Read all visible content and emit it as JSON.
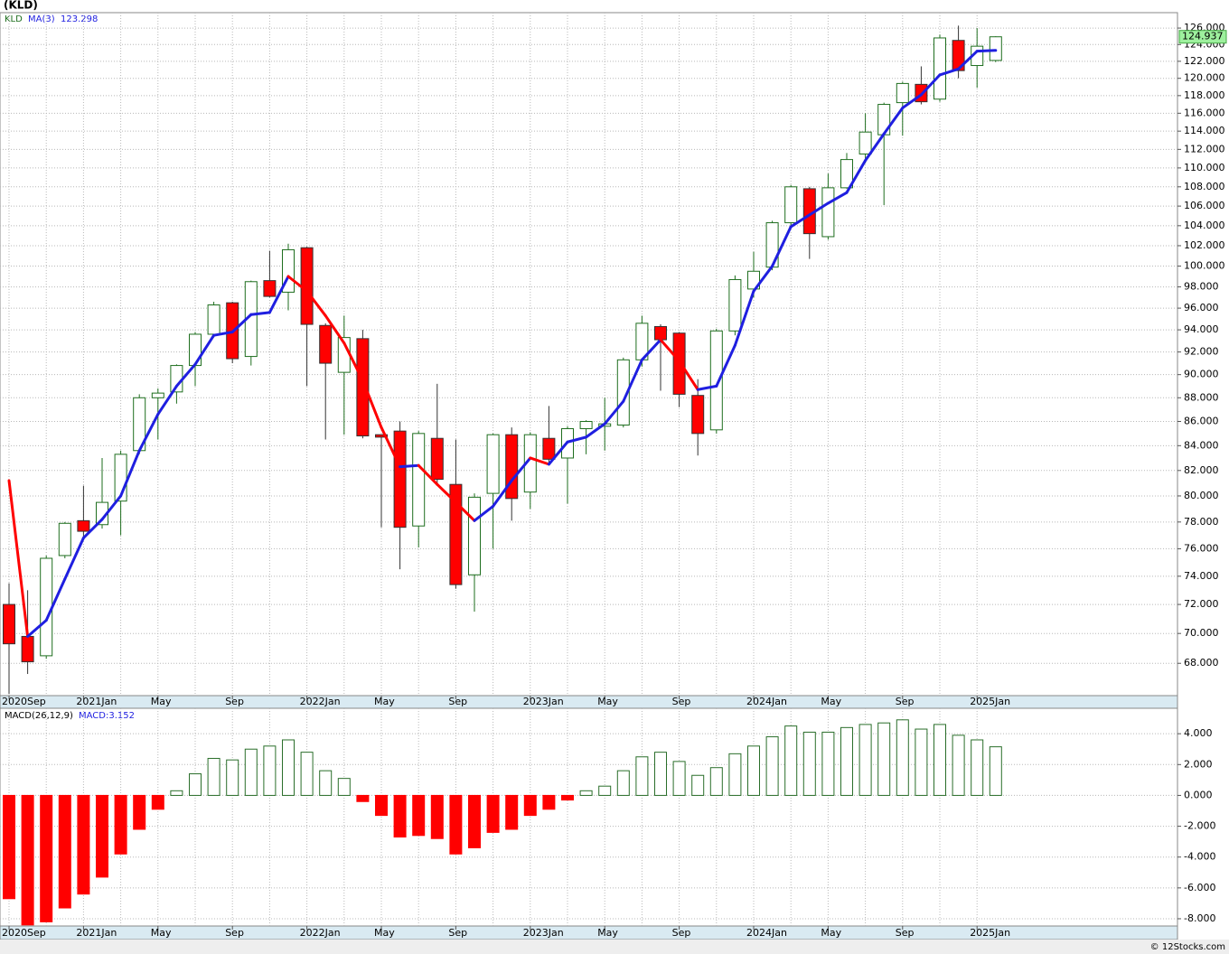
{
  "title": "(KLD)",
  "footer": "© 12Stocks.com",
  "chart_data": [
    {
      "type": "candlestick",
      "symbol": "KLD",
      "log_scale": true,
      "grid": true,
      "categories": [
        "2020Sep",
        null,
        null,
        null,
        "2021Jan",
        null,
        null,
        null,
        "May",
        null,
        null,
        null,
        "Sep",
        null,
        null,
        null,
        "2022Jan",
        null,
        null,
        null,
        "May",
        null,
        null,
        null,
        "Sep",
        null,
        null,
        null,
        "2023Jan",
        null,
        null,
        null,
        "May",
        null,
        null,
        null,
        "Sep",
        null,
        null,
        null,
        "2024Jan",
        null,
        null,
        null,
        "May",
        null,
        null,
        null,
        "Sep",
        null,
        null,
        null,
        "2025Jan",
        null
      ],
      "up_color": "#1e6e1e",
      "down_color": "#ff0000",
      "open": [
        72,
        69.8,
        68.5,
        75.5,
        78.1,
        77.8,
        79.6,
        83.6,
        88,
        88.5,
        90.8,
        93.6,
        96.5,
        91.6,
        98.6,
        97.5,
        101.8,
        94.4,
        90.2,
        93.2,
        84.9,
        85.2,
        77.7,
        84.6,
        80.9,
        74.1,
        80.2,
        84.9,
        80.3,
        84.6,
        83,
        85.4,
        85.6,
        85.7,
        91.3,
        94.3,
        93.7,
        88.2,
        85.3,
        93.9,
        97.8,
        99.9,
        104.3,
        107.8,
        102.9,
        107.9,
        111.5,
        113.6,
        117.2,
        119.3,
        117.6,
        124.5,
        121.5,
        122.1
      ],
      "high": [
        73.5,
        73,
        75.5,
        78,
        80.8,
        83,
        83.6,
        88.3,
        88.8,
        90.9,
        93.8,
        96.6,
        96.6,
        98.6,
        101.5,
        102.2,
        101.9,
        94.6,
        95.3,
        94,
        84.9,
        86,
        85.2,
        89.2,
        84.5,
        80.2,
        85,
        85.5,
        85.1,
        87.3,
        85.6,
        86.1,
        88,
        91.5,
        95.3,
        94.5,
        93.8,
        89.6,
        94.1,
        99.1,
        101.4,
        104.5,
        108.2,
        108,
        109.4,
        111.6,
        116,
        117.2,
        119.6,
        121.4,
        125.2,
        126.3,
        126,
        125
      ],
      "low": [
        66,
        67.3,
        68.3,
        75.3,
        76.8,
        77.5,
        77,
        83.3,
        84.5,
        87.5,
        89,
        93.3,
        91,
        90.8,
        97,
        95.8,
        89,
        84.5,
        84.9,
        84.6,
        77.6,
        74.5,
        76.1,
        80.8,
        73.1,
        71.5,
        76,
        78.1,
        79,
        82.4,
        79.4,
        83.3,
        83.6,
        85.5,
        90.7,
        88.6,
        87.2,
        83.2,
        85,
        93.5,
        97,
        99.6,
        103.9,
        100.7,
        102.6,
        107.8,
        110.5,
        106.1,
        113.5,
        117,
        117.3,
        120,
        118.9,
        121.9
      ],
      "close": [
        69.3,
        68.1,
        75.3,
        77.9,
        77.3,
        79.5,
        83.3,
        88,
        88.4,
        90.8,
        93.6,
        96.3,
        91.4,
        98.5,
        97.1,
        101.6,
        94.5,
        91,
        93.3,
        84.8,
        84.7,
        77.6,
        85,
        81.3,
        73.4,
        79.9,
        84.9,
        79.8,
        84.9,
        82.9,
        85.4,
        86,
        85.8,
        91.3,
        94.6,
        93.1,
        88.3,
        85,
        93.9,
        98.7,
        99.5,
        104.3,
        108,
        103.2,
        107.9,
        110.9,
        113.9,
        117,
        119.4,
        117.3,
        124.8,
        120.9,
        123.8,
        124.937
      ],
      "series": [
        {
          "name": "MA(3)",
          "color": "#1f1fe0",
          "down_color": "#ff0000",
          "values": [
            81.2,
            69.8,
            70.9,
            73.8,
            76.8,
            78.2,
            80,
            83.6,
            86.6,
            89,
            90.9,
            93.5,
            93.8,
            95.4,
            95.6,
            99,
            97.6,
            95.3,
            92.8,
            89.5,
            85.5,
            82.3,
            82.4,
            80.9,
            79.5,
            78.1,
            79.2,
            81.2,
            83,
            82.5,
            84.3,
            84.7,
            85.8,
            87.7,
            91.3,
            93.1,
            91.2,
            88.7,
            89,
            92.6,
            97.6,
            100,
            103.9,
            105.1,
            106.3,
            107.4,
            110.8,
            113.7,
            116.6,
            118.1,
            120.4,
            121.1,
            123.2,
            123.298
          ]
        }
      ],
      "ylim": [
        65.9,
        127.9
      ],
      "yticks": [
        {
          "value": 68,
          "label": "68.000"
        },
        {
          "value": 70,
          "label": "70.000"
        },
        {
          "value": 72,
          "label": "72.000"
        },
        {
          "value": 74,
          "label": "74.000"
        },
        {
          "value": 76,
          "label": "76.000"
        },
        {
          "value": 78,
          "label": "78.000"
        },
        {
          "value": 80,
          "label": "80.000"
        },
        {
          "value": 82,
          "label": "82.000"
        },
        {
          "value": 84,
          "label": "84.000"
        },
        {
          "value": 86,
          "label": "86.000"
        },
        {
          "value": 88,
          "label": "88.000"
        },
        {
          "value": 90,
          "label": "90.000"
        },
        {
          "value": 92,
          "label": "92.000"
        },
        {
          "value": 94,
          "label": "94.000"
        },
        {
          "value": 96,
          "label": "96.000"
        },
        {
          "value": 98,
          "label": "98.000"
        },
        {
          "value": 100,
          "label": "100.000"
        },
        {
          "value": 102,
          "label": "102.000"
        },
        {
          "value": 104,
          "label": "104.000"
        },
        {
          "value": 106,
          "label": "106.000"
        },
        {
          "value": 108,
          "label": "108.000"
        },
        {
          "value": 110,
          "label": "110.000"
        },
        {
          "value": 112,
          "label": "112.000"
        },
        {
          "value": 114,
          "label": "114.000"
        },
        {
          "value": 116,
          "label": "116.000"
        },
        {
          "value": 118,
          "label": "118.000"
        },
        {
          "value": 120,
          "label": "120.000"
        },
        {
          "value": 122,
          "label": "122.000"
        },
        {
          "value": 124,
          "label": "124.000"
        },
        {
          "value": 126,
          "label": "126.000"
        }
      ]
    },
    {
      "type": "bar",
      "title": "MACD(26,12,9)",
      "value_label": "MACD:3.152",
      "grid": true,
      "categories": [
        "2020Sep",
        null,
        null,
        null,
        "2021Jan",
        null,
        null,
        null,
        "May",
        null,
        null,
        null,
        "Sep",
        null,
        null,
        null,
        "2022Jan",
        null,
        null,
        null,
        "May",
        null,
        null,
        null,
        "Sep",
        null,
        null,
        null,
        "2023Jan",
        null,
        null,
        null,
        "May",
        null,
        null,
        null,
        "Sep",
        null,
        null,
        null,
        "2024Jan",
        null,
        null,
        null,
        "May",
        null,
        null,
        null,
        "Sep",
        null,
        null,
        null,
        "2025Jan",
        null
      ],
      "up_color": "#2a6e2a",
      "down_color": "#ff0000",
      "values": [
        -6.7,
        -8.4,
        -8.2,
        -7.3,
        -6.4,
        -5.3,
        -3.8,
        -2.2,
        -0.9,
        0.3,
        1.4,
        2.4,
        2.3,
        3,
        3.2,
        3.6,
        2.8,
        1.6,
        1.1,
        -0.4,
        -1.3,
        -2.7,
        -2.6,
        -2.8,
        -3.8,
        -3.4,
        -2.4,
        -2.2,
        -1.3,
        -0.9,
        -0.3,
        0.3,
        0.6,
        1.6,
        2.5,
        2.8,
        2.2,
        1.3,
        1.8,
        2.7,
        3.2,
        3.8,
        4.5,
        4.1,
        4.1,
        4.4,
        4.6,
        4.7,
        4.9,
        4.3,
        4.6,
        3.9,
        3.6,
        3.152
      ],
      "ylim": [
        -8.47,
        5.65
      ],
      "yticks": [
        {
          "value": 4,
          "label": "4.000"
        },
        {
          "value": 2,
          "label": "2.000"
        },
        {
          "value": 0,
          "label": "0.000"
        },
        {
          "value": -2,
          "label": "-2.000"
        },
        {
          "value": -4,
          "label": "-4.000"
        },
        {
          "value": -6,
          "label": "-6.000"
        },
        {
          "value": -8,
          "label": "-8.000"
        }
      ]
    }
  ]
}
